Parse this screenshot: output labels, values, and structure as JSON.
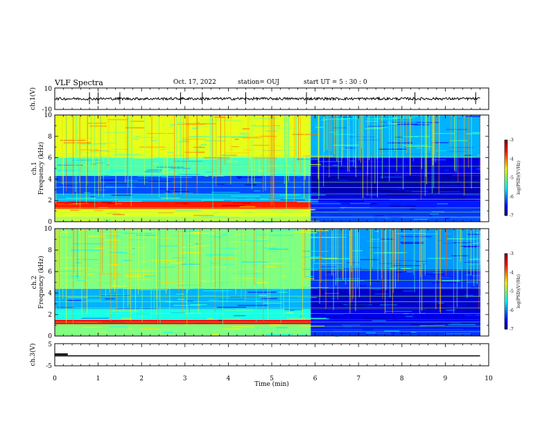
{
  "header": {
    "title": "VLF Spectra",
    "date": "Oct. 17, 2022",
    "station": "station= OUJ",
    "start": "start  UT =  5 : 30 : 0"
  },
  "chart_data": [
    {
      "type": "line",
      "name": "ch1-waveform",
      "ylabel": "ch.1(V)",
      "ylim": [
        -10,
        10
      ],
      "yticks": [
        "10",
        "-10"
      ],
      "xlim": [
        0,
        10
      ],
      "baseline": 0,
      "noise_amplitude": 1.2,
      "spike_times_min": [
        0.8,
        1.0,
        1.5,
        2.9,
        3.4,
        4.4,
        5.8,
        8.3,
        9.7
      ]
    },
    {
      "type": "heatmap",
      "name": "ch1-spectrogram",
      "ylabel": "ch.1\nFrequency  (kHz)",
      "ylabel_lines": [
        "ch.1",
        "Frequency  (kHz)"
      ],
      "ylim": [
        0,
        10
      ],
      "yticks": [
        "0",
        "2",
        "4",
        "6",
        "8",
        "10"
      ],
      "xlim": [
        0,
        10
      ],
      "regime_change_min": 5.9,
      "colorbar": {
        "label": "log(PSD)(V²/Hz)",
        "range": [
          -7,
          -3
        ],
        "ticks": [
          "-3",
          "-4",
          "-5",
          "-6",
          "-7"
        ]
      },
      "dominant_bands_khz": [
        {
          "band": [
            0,
            0.5
          ],
          "log_psd_before": -4.8,
          "log_psd_after": -6.2
        },
        {
          "band": [
            0.5,
            1.2
          ],
          "log_psd_before": -4.6,
          "log_psd_after": -6.3
        },
        {
          "band": [
            1.2,
            1.9
          ],
          "log_psd_before": -3.6,
          "log_psd_after": -6.4
        },
        {
          "band": [
            1.9,
            2.6
          ],
          "log_psd_before": -5.8,
          "log_psd_after": -6.6
        },
        {
          "band": [
            2.6,
            4.3
          ],
          "log_psd_before": -6.2,
          "log_psd_after": -6.8
        },
        {
          "band": [
            4.3,
            4.6
          ],
          "log_psd_before": -5.2,
          "log_psd_after": -6.7
        },
        {
          "band": [
            4.6,
            6.0
          ],
          "log_psd_before": -5.2,
          "log_psd_after": -6.6
        },
        {
          "band": [
            6.0,
            10.0
          ],
          "log_psd_before": -4.6,
          "log_psd_after": -5.8
        }
      ]
    },
    {
      "type": "heatmap",
      "name": "ch2-spectrogram",
      "ylabel": "ch.2\nFrequency  (kHz)",
      "ylabel_lines": [
        "ch.2",
        "Frequency  (kHz)"
      ],
      "ylim": [
        0,
        10
      ],
      "yticks": [
        "0",
        "2",
        "4",
        "6",
        "8",
        "10"
      ],
      "xlim": [
        0,
        10
      ],
      "regime_change_min": 5.9,
      "colorbar": {
        "label": "log(PSD)(V²/Hz)",
        "range": [
          -7,
          -3
        ],
        "ticks": [
          "-3",
          "-4",
          "-5",
          "-6",
          "-7"
        ]
      },
      "dominant_bands_khz": [
        {
          "band": [
            0,
            0.6
          ],
          "log_psd_before": -5.0,
          "log_psd_after": -6.3
        },
        {
          "band": [
            0.6,
            1.1
          ],
          "log_psd_before": -5.0,
          "log_psd_after": -6.4
        },
        {
          "band": [
            1.1,
            1.5
          ],
          "log_psd_before": -3.5,
          "log_psd_after": -6.5
        },
        {
          "band": [
            1.5,
            2.5
          ],
          "log_psd_before": -5.4,
          "log_psd_after": -6.6
        },
        {
          "band": [
            2.5,
            4.4
          ],
          "log_psd_before": -5.8,
          "log_psd_after": -6.7
        },
        {
          "band": [
            4.4,
            6.2
          ],
          "log_psd_before": -5.0,
          "log_psd_after": -6.3
        },
        {
          "band": [
            6.2,
            10.0
          ],
          "log_psd_before": -5.0,
          "log_psd_after": -5.9
        }
      ]
    },
    {
      "type": "line",
      "name": "ch3-waveform",
      "ylabel": "ch.3(V)",
      "ylim": [
        -5,
        5
      ],
      "yticks": [
        "5",
        "-5"
      ],
      "xlim": [
        0,
        10
      ],
      "xticks": [
        "0",
        "1",
        "2",
        "3",
        "4",
        "5",
        "6",
        "7",
        "8",
        "9",
        "10"
      ],
      "xlabel": "Time  (min)",
      "level_v": -0.5,
      "step": {
        "t_end_min": 0.3,
        "level_v": 0.2
      }
    }
  ]
}
